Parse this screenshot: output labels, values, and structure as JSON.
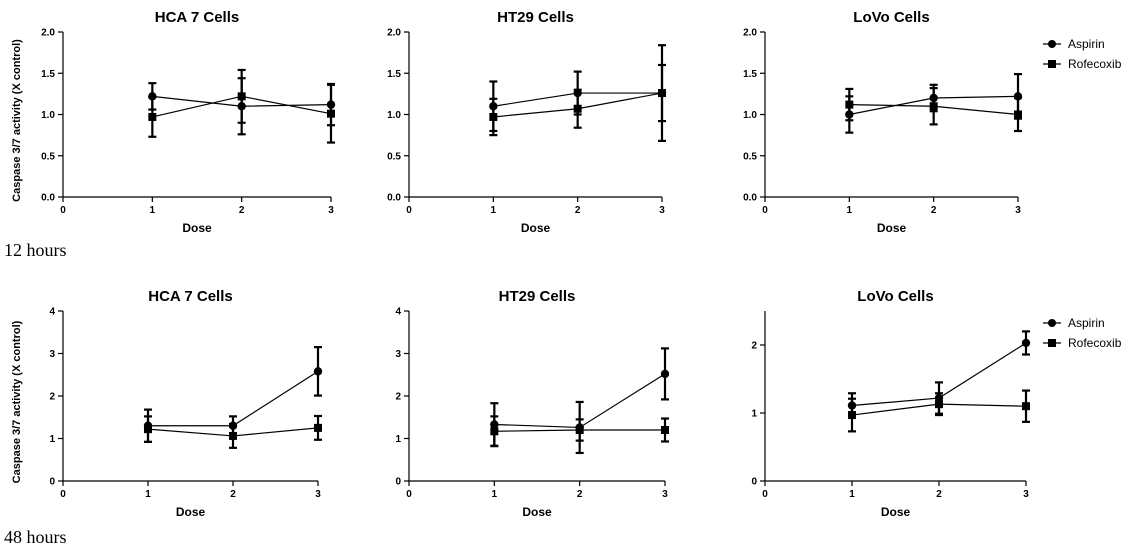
{
  "figure": {
    "row_labels": [
      "12 hours",
      "48 hours"
    ],
    "legend": {
      "aspirin": "Aspirin",
      "rofecoxib": "Rofecoxib",
      "marker_aspirin": "circle",
      "marker_rofecoxib": "square"
    },
    "colors": {
      "line": "#000000",
      "background": "#ffffff"
    }
  },
  "chart_data": [
    {
      "type": "line",
      "title": "HCA 7 Cells",
      "xlabel": "Dose",
      "ylabel": "Caspase 3/7 activity (X control)",
      "x": [
        1,
        2,
        3
      ],
      "xlim": [
        0,
        3
      ],
      "xticks": [
        "0",
        "1",
        "2",
        "3"
      ],
      "ylim": [
        0,
        2.0
      ],
      "yticks": [
        "0.0",
        "0.5",
        "1.0",
        "1.5",
        "2.0"
      ],
      "grid": false,
      "legend": "none",
      "series": [
        {
          "name": "Aspirin",
          "marker": "circle",
          "values": [
            1.22,
            1.1,
            1.12
          ],
          "errors": [
            0.16,
            0.34,
            0.25
          ]
        },
        {
          "name": "Rofecoxib",
          "marker": "square",
          "values": [
            0.97,
            1.22,
            1.01
          ],
          "errors": [
            0.24,
            0.32,
            0.35
          ]
        }
      ]
    },
    {
      "type": "line",
      "title": "HT29 Cells",
      "xlabel": "Dose",
      "ylabel": "",
      "x": [
        1,
        2,
        3
      ],
      "xlim": [
        0,
        3
      ],
      "xticks": [
        "0",
        "1",
        "2",
        "3"
      ],
      "ylim": [
        0,
        2.0
      ],
      "yticks": [
        "0.0",
        "0.5",
        "1.0",
        "1.5",
        "2.0"
      ],
      "grid": false,
      "legend": "none",
      "series": [
        {
          "name": "Aspirin",
          "marker": "circle",
          "values": [
            1.1,
            1.26,
            1.26
          ],
          "errors": [
            0.3,
            0.26,
            0.58
          ]
        },
        {
          "name": "Rofecoxib",
          "marker": "square",
          "values": [
            0.97,
            1.07,
            1.26
          ],
          "errors": [
            0.22,
            0.23,
            0.34
          ]
        }
      ]
    },
    {
      "type": "line",
      "title": "LoVo Cells",
      "xlabel": "Dose",
      "ylabel": "",
      "x": [
        1,
        2,
        3
      ],
      "xlim": [
        0,
        3
      ],
      "xticks": [
        "0",
        "1",
        "2",
        "3"
      ],
      "ylim": [
        0,
        2.0
      ],
      "yticks": [
        "0.0",
        "0.5",
        "1.0",
        "1.5",
        "2.0"
      ],
      "grid": false,
      "legend": "top-right",
      "series": [
        {
          "name": "Aspirin",
          "marker": "circle",
          "values": [
            1.0,
            1.2,
            1.22
          ],
          "errors": [
            0.22,
            0.16,
            0.27
          ]
        },
        {
          "name": "Rofecoxib",
          "marker": "square",
          "values": [
            1.12,
            1.1,
            1.0
          ],
          "errors": [
            0.19,
            0.22,
            0.2
          ]
        }
      ]
    },
    {
      "type": "line",
      "title": "HCA 7 Cells",
      "xlabel": "Dose",
      "ylabel": "Caspase 3/7 activity (X control)",
      "x": [
        1,
        2,
        3
      ],
      "xlim": [
        0,
        3
      ],
      "xticks": [
        "0",
        "1",
        "2",
        "3"
      ],
      "ylim": [
        0,
        4
      ],
      "yticks": [
        "0",
        "1",
        "2",
        "3",
        "4"
      ],
      "grid": false,
      "legend": "none",
      "series": [
        {
          "name": "Aspirin",
          "marker": "circle",
          "values": [
            1.3,
            1.3,
            2.58
          ],
          "errors": [
            0.38,
            0.22,
            0.57
          ]
        },
        {
          "name": "Rofecoxib",
          "marker": "square",
          "values": [
            1.22,
            1.06,
            1.25
          ],
          "errors": [
            0.3,
            0.28,
            0.28
          ]
        }
      ]
    },
    {
      "type": "line",
      "title": "HT29 Cells",
      "xlabel": "Dose",
      "ylabel": "",
      "x": [
        1,
        2,
        3
      ],
      "xlim": [
        0,
        3
      ],
      "xticks": [
        "0",
        "1",
        "2",
        "3"
      ],
      "ylim": [
        0,
        4
      ],
      "yticks": [
        "0",
        "1",
        "2",
        "3",
        "4"
      ],
      "grid": false,
      "legend": "none",
      "series": [
        {
          "name": "Aspirin",
          "marker": "circle",
          "values": [
            1.33,
            1.26,
            2.52
          ],
          "errors": [
            0.5,
            0.6,
            0.6
          ]
        },
        {
          "name": "Rofecoxib",
          "marker": "square",
          "values": [
            1.17,
            1.2,
            1.2
          ],
          "errors": [
            0.35,
            0.25,
            0.27
          ]
        }
      ]
    },
    {
      "type": "line",
      "title": "LoVo Cells",
      "xlabel": "Dose",
      "ylabel": "",
      "x": [
        1,
        2,
        3
      ],
      "xlim": [
        0,
        3
      ],
      "xticks": [
        "0",
        "1",
        "2",
        "3"
      ],
      "ylim": [
        0,
        2.5
      ],
      "yticks": [
        "0",
        "1",
        "2"
      ],
      "grid": false,
      "legend": "top-right",
      "series": [
        {
          "name": "Aspirin",
          "marker": "circle",
          "values": [
            1.11,
            1.22,
            2.03
          ],
          "errors": [
            0.18,
            0.23,
            0.17
          ]
        },
        {
          "name": "Rofecoxib",
          "marker": "square",
          "values": [
            0.97,
            1.13,
            1.1
          ],
          "errors": [
            0.24,
            0.16,
            0.23
          ]
        }
      ]
    }
  ]
}
